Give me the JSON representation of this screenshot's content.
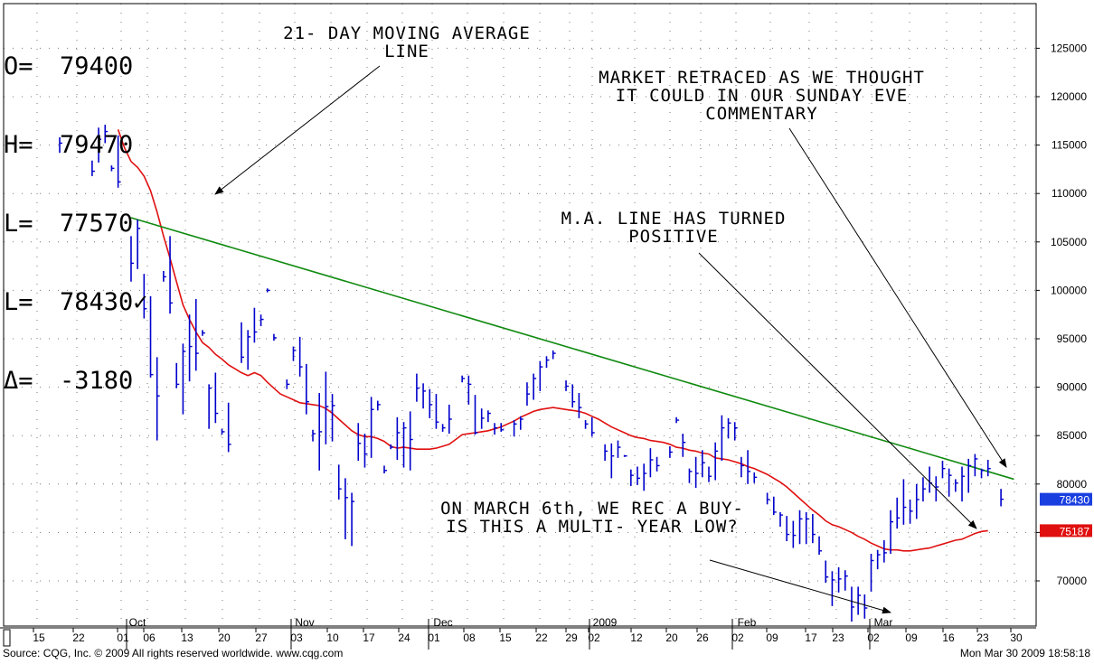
{
  "ohlc": [
    {
      "label": "O=",
      "value": "79400"
    },
    {
      "label": "H=",
      "value": "79470"
    },
    {
      "label": "L=",
      "value": "77570"
    },
    {
      "label": "L=",
      "value": "78430✓"
    },
    {
      "label": "Δ=",
      "value": "-3180"
    }
  ],
  "annotations": {
    "ma": "21- DAY MOVING AVERAGE\nLINE",
    "retraced": "MARKET RETRACED AS WE THOUGHT\nIT COULD IN OUR SUNDAY EVE\nCOMMENTARY",
    "turned": "M.A. LINE HAS TURNED\nPOSITIVE",
    "buy": "ON MARCH 6th, WE REC A BUY-\nIS THIS A MULTI- YEAR LOW?"
  },
  "footer": {
    "source": "Source: CQG, Inc. © 2009 All rights reserved worldwide. www.cqg.com",
    "timestamp": "Mon Mar 30 2009 18:58:18"
  },
  "colors": {
    "bars": "#0000cc",
    "moving_average": "#e01010",
    "trendline": "#108a10",
    "last_price_tag": "#1a3fe0",
    "ma_tag": "#e01010"
  },
  "chart_data": {
    "type": "ohlc",
    "y_range": [
      65000,
      130000
    ],
    "y_ticks": [
      70000,
      75000,
      80000,
      85000,
      90000,
      95000,
      100000,
      105000,
      110000,
      115000,
      120000,
      125000
    ],
    "y_tick_labels": [
      "70000",
      "75000",
      "80000",
      "85000",
      "90000",
      "95000",
      "100000",
      "105000",
      "110000",
      "115000",
      "120000",
      "125000"
    ],
    "x_tick_labels": [
      "15",
      "22",
      "01",
      "06",
      "13",
      "20",
      "27",
      "03",
      "10",
      "17",
      "24",
      "01",
      "08",
      "15",
      "22",
      "29",
      "02",
      "12",
      "20",
      "26",
      "02",
      "09",
      "17",
      "23",
      "02",
      "09",
      "16",
      "23",
      "30"
    ],
    "month_labels": [
      "Oct",
      "Nov",
      "Dec",
      "2009",
      "Feb",
      "Mar"
    ],
    "last_price_tag": "78430",
    "ma_tag": "75187",
    "bars": [
      [
        0,
        115800,
        114200,
        115200
      ],
      [
        5,
        113400,
        111800,
        112300
      ],
      [
        6,
        116800,
        113200,
        115600
      ],
      [
        7,
        117100,
        115200,
        116400
      ],
      [
        8,
        112900,
        112300,
        112600
      ],
      [
        9,
        116000,
        110600,
        111200
      ],
      [
        11,
        105600,
        100900,
        102800
      ],
      [
        12,
        107300,
        102200,
        106400
      ],
      [
        13,
        101700,
        97100,
        98100
      ],
      [
        14,
        99400,
        91000,
        91300
      ],
      [
        15,
        93100,
        84500,
        89100
      ],
      [
        16,
        102000,
        100900,
        101400
      ],
      [
        17,
        105600,
        97600,
        98700
      ],
      [
        18,
        92500,
        89900,
        90300
      ],
      [
        19,
        94500,
        87200,
        93700
      ],
      [
        20,
        97500,
        90600,
        94200
      ],
      [
        21,
        99100,
        91700,
        93500
      ],
      [
        22,
        95900,
        95300,
        95600
      ],
      [
        23,
        90300,
        85700,
        89900
      ],
      [
        24,
        91500,
        86300,
        87300
      ],
      [
        25,
        85700,
        85100,
        85400
      ],
      [
        26,
        88400,
        83300,
        84100
      ],
      [
        28,
        96700,
        92500,
        93100
      ],
      [
        29,
        95900,
        91800,
        95200
      ],
      [
        30,
        98200,
        94600,
        95700
      ],
      [
        31,
        97500,
        96300,
        97000
      ],
      [
        32,
        100200,
        99800,
        100000
      ],
      [
        33,
        95500,
        94800,
        95100
      ],
      [
        35,
        90800,
        89800,
        90300
      ],
      [
        36,
        94200,
        92700,
        93800
      ],
      [
        37,
        95200,
        91100,
        92100
      ],
      [
        38,
        92400,
        87200,
        88500
      ],
      [
        39,
        85600,
        84400,
        85200
      ],
      [
        40,
        89400,
        81400,
        85400
      ],
      [
        41,
        91600,
        84100,
        88000
      ],
      [
        42,
        89300,
        84400,
        88100
      ],
      [
        43,
        82000,
        78400,
        79500
      ],
      [
        44,
        80600,
        74300,
        78600
      ],
      [
        45,
        79100,
        73600,
        78200
      ],
      [
        46,
        86300,
        82400,
        84200
      ],
      [
        47,
        85200,
        81700,
        83100
      ],
      [
        48,
        89000,
        82700,
        87700
      ],
      [
        49,
        88600,
        87600,
        88200
      ],
      [
        50,
        81900,
        81100,
        81400
      ],
      [
        51,
        84100,
        83600,
        83800
      ],
      [
        52,
        86900,
        82500,
        85300
      ],
      [
        53,
        86400,
        81700,
        85800
      ],
      [
        54,
        87500,
        81400,
        84600
      ],
      [
        55,
        91400,
        88500,
        89900
      ],
      [
        56,
        90400,
        87800,
        89600
      ],
      [
        57,
        89800,
        86800,
        88200
      ],
      [
        58,
        89300,
        85700,
        86400
      ],
      [
        59,
        86200,
        85400,
        85800
      ],
      [
        60,
        88200,
        85200,
        86700
      ],
      [
        62,
        91200,
        90500,
        90900
      ],
      [
        63,
        91200,
        88200,
        90300
      ],
      [
        64,
        89200,
        85100,
        85300
      ],
      [
        65,
        87800,
        85700,
        86800
      ],
      [
        66,
        87600,
        86400,
        87300
      ],
      [
        67,
        86300,
        85100,
        85800
      ],
      [
        68,
        86300,
        85400,
        85600
      ],
      [
        70,
        86600,
        84900,
        86200
      ],
      [
        71,
        87000,
        85600,
        86700
      ],
      [
        72,
        90500,
        88100,
        89300
      ],
      [
        73,
        91400,
        88700,
        90900
      ],
      [
        74,
        92700,
        89600,
        92100
      ],
      [
        75,
        93200,
        92000,
        92800
      ],
      [
        76,
        93800,
        92900,
        93500
      ],
      [
        78,
        90700,
        89600,
        90100
      ],
      [
        79,
        90300,
        87900,
        88500
      ],
      [
        80,
        89400,
        86800,
        87900
      ],
      [
        81,
        86600,
        85700,
        86200
      ],
      [
        82,
        86900,
        84900,
        85300
      ],
      [
        84,
        84100,
        82400,
        83400
      ],
      [
        85,
        84200,
        80600,
        82900
      ],
      [
        86,
        84500,
        82700,
        83800
      ],
      [
        87,
        83000,
        82800,
        82900
      ],
      [
        88,
        81500,
        79800,
        80900
      ],
      [
        89,
        81800,
        79900,
        80600
      ],
      [
        90,
        82100,
        79300,
        81100
      ],
      [
        91,
        83700,
        80700,
        82500
      ],
      [
        92,
        82800,
        81300,
        81900
      ],
      [
        94,
        83900,
        82700,
        83300
      ],
      [
        95,
        86900,
        86300,
        86600
      ],
      [
        96,
        85200,
        82800,
        84300
      ],
      [
        97,
        81600,
        80100,
        81300
      ],
      [
        98,
        82800,
        79600,
        81100
      ],
      [
        99,
        83500,
        80700,
        82200
      ],
      [
        100,
        81800,
        80200,
        80800
      ],
      [
        101,
        84300,
        80400,
        83400
      ],
      [
        102,
        87100,
        82400,
        85800
      ],
      [
        103,
        86800,
        84700,
        86300
      ],
      [
        104,
        86400,
        84500,
        85800
      ],
      [
        105,
        82800,
        80700,
        81900
      ],
      [
        106,
        83500,
        80000,
        81300
      ],
      [
        107,
        81200,
        80100,
        80700
      ],
      [
        109,
        79100,
        77900,
        78400
      ],
      [
        110,
        78700,
        76800,
        77100
      ],
      [
        111,
        77100,
        75600,
        76800
      ],
      [
        112,
        76700,
        74100,
        74800
      ],
      [
        113,
        76200,
        73400,
        74700
      ],
      [
        114,
        77300,
        73800,
        76400
      ],
      [
        115,
        77100,
        73800,
        76400
      ],
      [
        116,
        76900,
        73900,
        74800
      ],
      [
        117,
        74600,
        72700,
        73100
      ],
      [
        118,
        72100,
        69800,
        70400
      ],
      [
        119,
        71000,
        67400,
        70100
      ],
      [
        120,
        71400,
        68800,
        70200
      ],
      [
        121,
        71100,
        69000,
        70500
      ],
      [
        122,
        69400,
        65800,
        67300
      ],
      [
        123,
        69400,
        66500,
        68500
      ],
      [
        124,
        68600,
        66100,
        67200
      ],
      [
        125,
        72800,
        68900,
        72100
      ],
      [
        126,
        73200,
        71200,
        72700
      ],
      [
        127,
        74200,
        71900,
        72900
      ],
      [
        128,
        77300,
        72800,
        76100
      ],
      [
        129,
        78600,
        75400,
        76500
      ],
      [
        130,
        80500,
        75800,
        77600
      ],
      [
        131,
        78400,
        75900,
        77200
      ],
      [
        132,
        80000,
        76400,
        78400
      ],
      [
        133,
        80700,
        78200,
        79500
      ],
      [
        134,
        81800,
        79100,
        80100
      ],
      [
        135,
        80800,
        78200,
        79700
      ],
      [
        136,
        82400,
        80600,
        81600
      ],
      [
        137,
        81600,
        78700,
        80900
      ],
      [
        138,
        80500,
        79200,
        80100
      ],
      [
        139,
        81800,
        78200,
        80800
      ],
      [
        140,
        82600,
        79100,
        81900
      ],
      [
        141,
        83100,
        80800,
        82600
      ],
      [
        142,
        81600,
        80600,
        81400
      ],
      [
        143,
        82500,
        80800,
        81600
      ],
      [
        145,
        79500,
        77700,
        78430
      ]
    ],
    "moving_average": [
      [
        9,
        116600
      ],
      [
        10,
        114700
      ],
      [
        11,
        113300
      ],
      [
        12,
        112700
      ],
      [
        13,
        111800
      ],
      [
        14,
        110300
      ],
      [
        15,
        108100
      ],
      [
        16,
        105600
      ],
      [
        17,
        103300
      ],
      [
        18,
        100900
      ],
      [
        19,
        98500
      ],
      [
        20,
        97000
      ],
      [
        21,
        95700
      ],
      [
        22,
        94600
      ],
      [
        23,
        94100
      ],
      [
        24,
        93400
      ],
      [
        25,
        92900
      ],
      [
        26,
        92300
      ],
      [
        27,
        91900
      ],
      [
        28,
        91500
      ],
      [
        29,
        91200
      ],
      [
        30,
        91500
      ],
      [
        31,
        91200
      ],
      [
        32,
        90500
      ],
      [
        33,
        89900
      ],
      [
        34,
        89300
      ],
      [
        35,
        89000
      ],
      [
        36,
        88700
      ],
      [
        37,
        88400
      ],
      [
        38,
        88300
      ],
      [
        39,
        88200
      ],
      [
        40,
        88100
      ],
      [
        41,
        87800
      ],
      [
        42,
        87300
      ],
      [
        43,
        86700
      ],
      [
        44,
        86100
      ],
      [
        45,
        85500
      ],
      [
        46,
        85100
      ],
      [
        47,
        84900
      ],
      [
        48,
        84900
      ],
      [
        49,
        84700
      ],
      [
        50,
        84400
      ],
      [
        51,
        83900
      ],
      [
        52,
        83700
      ],
      [
        53,
        83800
      ],
      [
        54,
        83700
      ],
      [
        55,
        83600
      ],
      [
        56,
        83600
      ],
      [
        57,
        83600
      ],
      [
        58,
        83700
      ],
      [
        59,
        83900
      ],
      [
        60,
        84100
      ],
      [
        61,
        84600
      ],
      [
        62,
        85100
      ],
      [
        63,
        85200
      ],
      [
        64,
        85300
      ],
      [
        65,
        85400
      ],
      [
        66,
        85500
      ],
      [
        67,
        85700
      ],
      [
        68,
        85900
      ],
      [
        69,
        86200
      ],
      [
        70,
        86500
      ],
      [
        71,
        86900
      ],
      [
        72,
        87200
      ],
      [
        73,
        87500
      ],
      [
        74,
        87700
      ],
      [
        75,
        87800
      ],
      [
        76,
        87900
      ],
      [
        77,
        87800
      ],
      [
        78,
        87700
      ],
      [
        79,
        87600
      ],
      [
        80,
        87500
      ],
      [
        81,
        87300
      ],
      [
        82,
        87000
      ],
      [
        83,
        86700
      ],
      [
        84,
        86300
      ],
      [
        85,
        85900
      ],
      [
        86,
        85600
      ],
      [
        87,
        85300
      ],
      [
        88,
        85000
      ],
      [
        89,
        84800
      ],
      [
        90,
        84700
      ],
      [
        91,
        84500
      ],
      [
        92,
        84400
      ],
      [
        93,
        84300
      ],
      [
        94,
        84100
      ],
      [
        95,
        83800
      ],
      [
        96,
        83700
      ],
      [
        97,
        83500
      ],
      [
        98,
        83400
      ],
      [
        99,
        83200
      ],
      [
        100,
        83100
      ],
      [
        101,
        82700
      ],
      [
        102,
        82600
      ],
      [
        103,
        82500
      ],
      [
        104,
        82300
      ],
      [
        105,
        82100
      ],
      [
        106,
        81800
      ],
      [
        107,
        81600
      ],
      [
        108,
        81300
      ],
      [
        109,
        81000
      ],
      [
        110,
        80600
      ],
      [
        111,
        80200
      ],
      [
        112,
        79700
      ],
      [
        113,
        79100
      ],
      [
        114,
        78500
      ],
      [
        115,
        77900
      ],
      [
        116,
        77300
      ],
      [
        117,
        76800
      ],
      [
        118,
        76200
      ],
      [
        119,
        75800
      ],
      [
        120,
        75600
      ],
      [
        121,
        75300
      ],
      [
        122,
        75000
      ],
      [
        123,
        74600
      ],
      [
        124,
        74300
      ],
      [
        125,
        73900
      ],
      [
        126,
        73600
      ],
      [
        127,
        73300
      ],
      [
        128,
        73200
      ],
      [
        129,
        73200
      ],
      [
        130,
        73100
      ],
      [
        131,
        73100
      ],
      [
        132,
        73200
      ],
      [
        133,
        73300
      ],
      [
        134,
        73400
      ],
      [
        135,
        73600
      ],
      [
        136,
        73800
      ],
      [
        137,
        74000
      ],
      [
        138,
        74200
      ],
      [
        139,
        74300
      ],
      [
        140,
        74600
      ],
      [
        141,
        74900
      ],
      [
        142,
        75100
      ],
      [
        143,
        75187
      ]
    ],
    "trendline": [
      [
        11,
        107500
      ],
      [
        147,
        80500
      ]
    ]
  }
}
